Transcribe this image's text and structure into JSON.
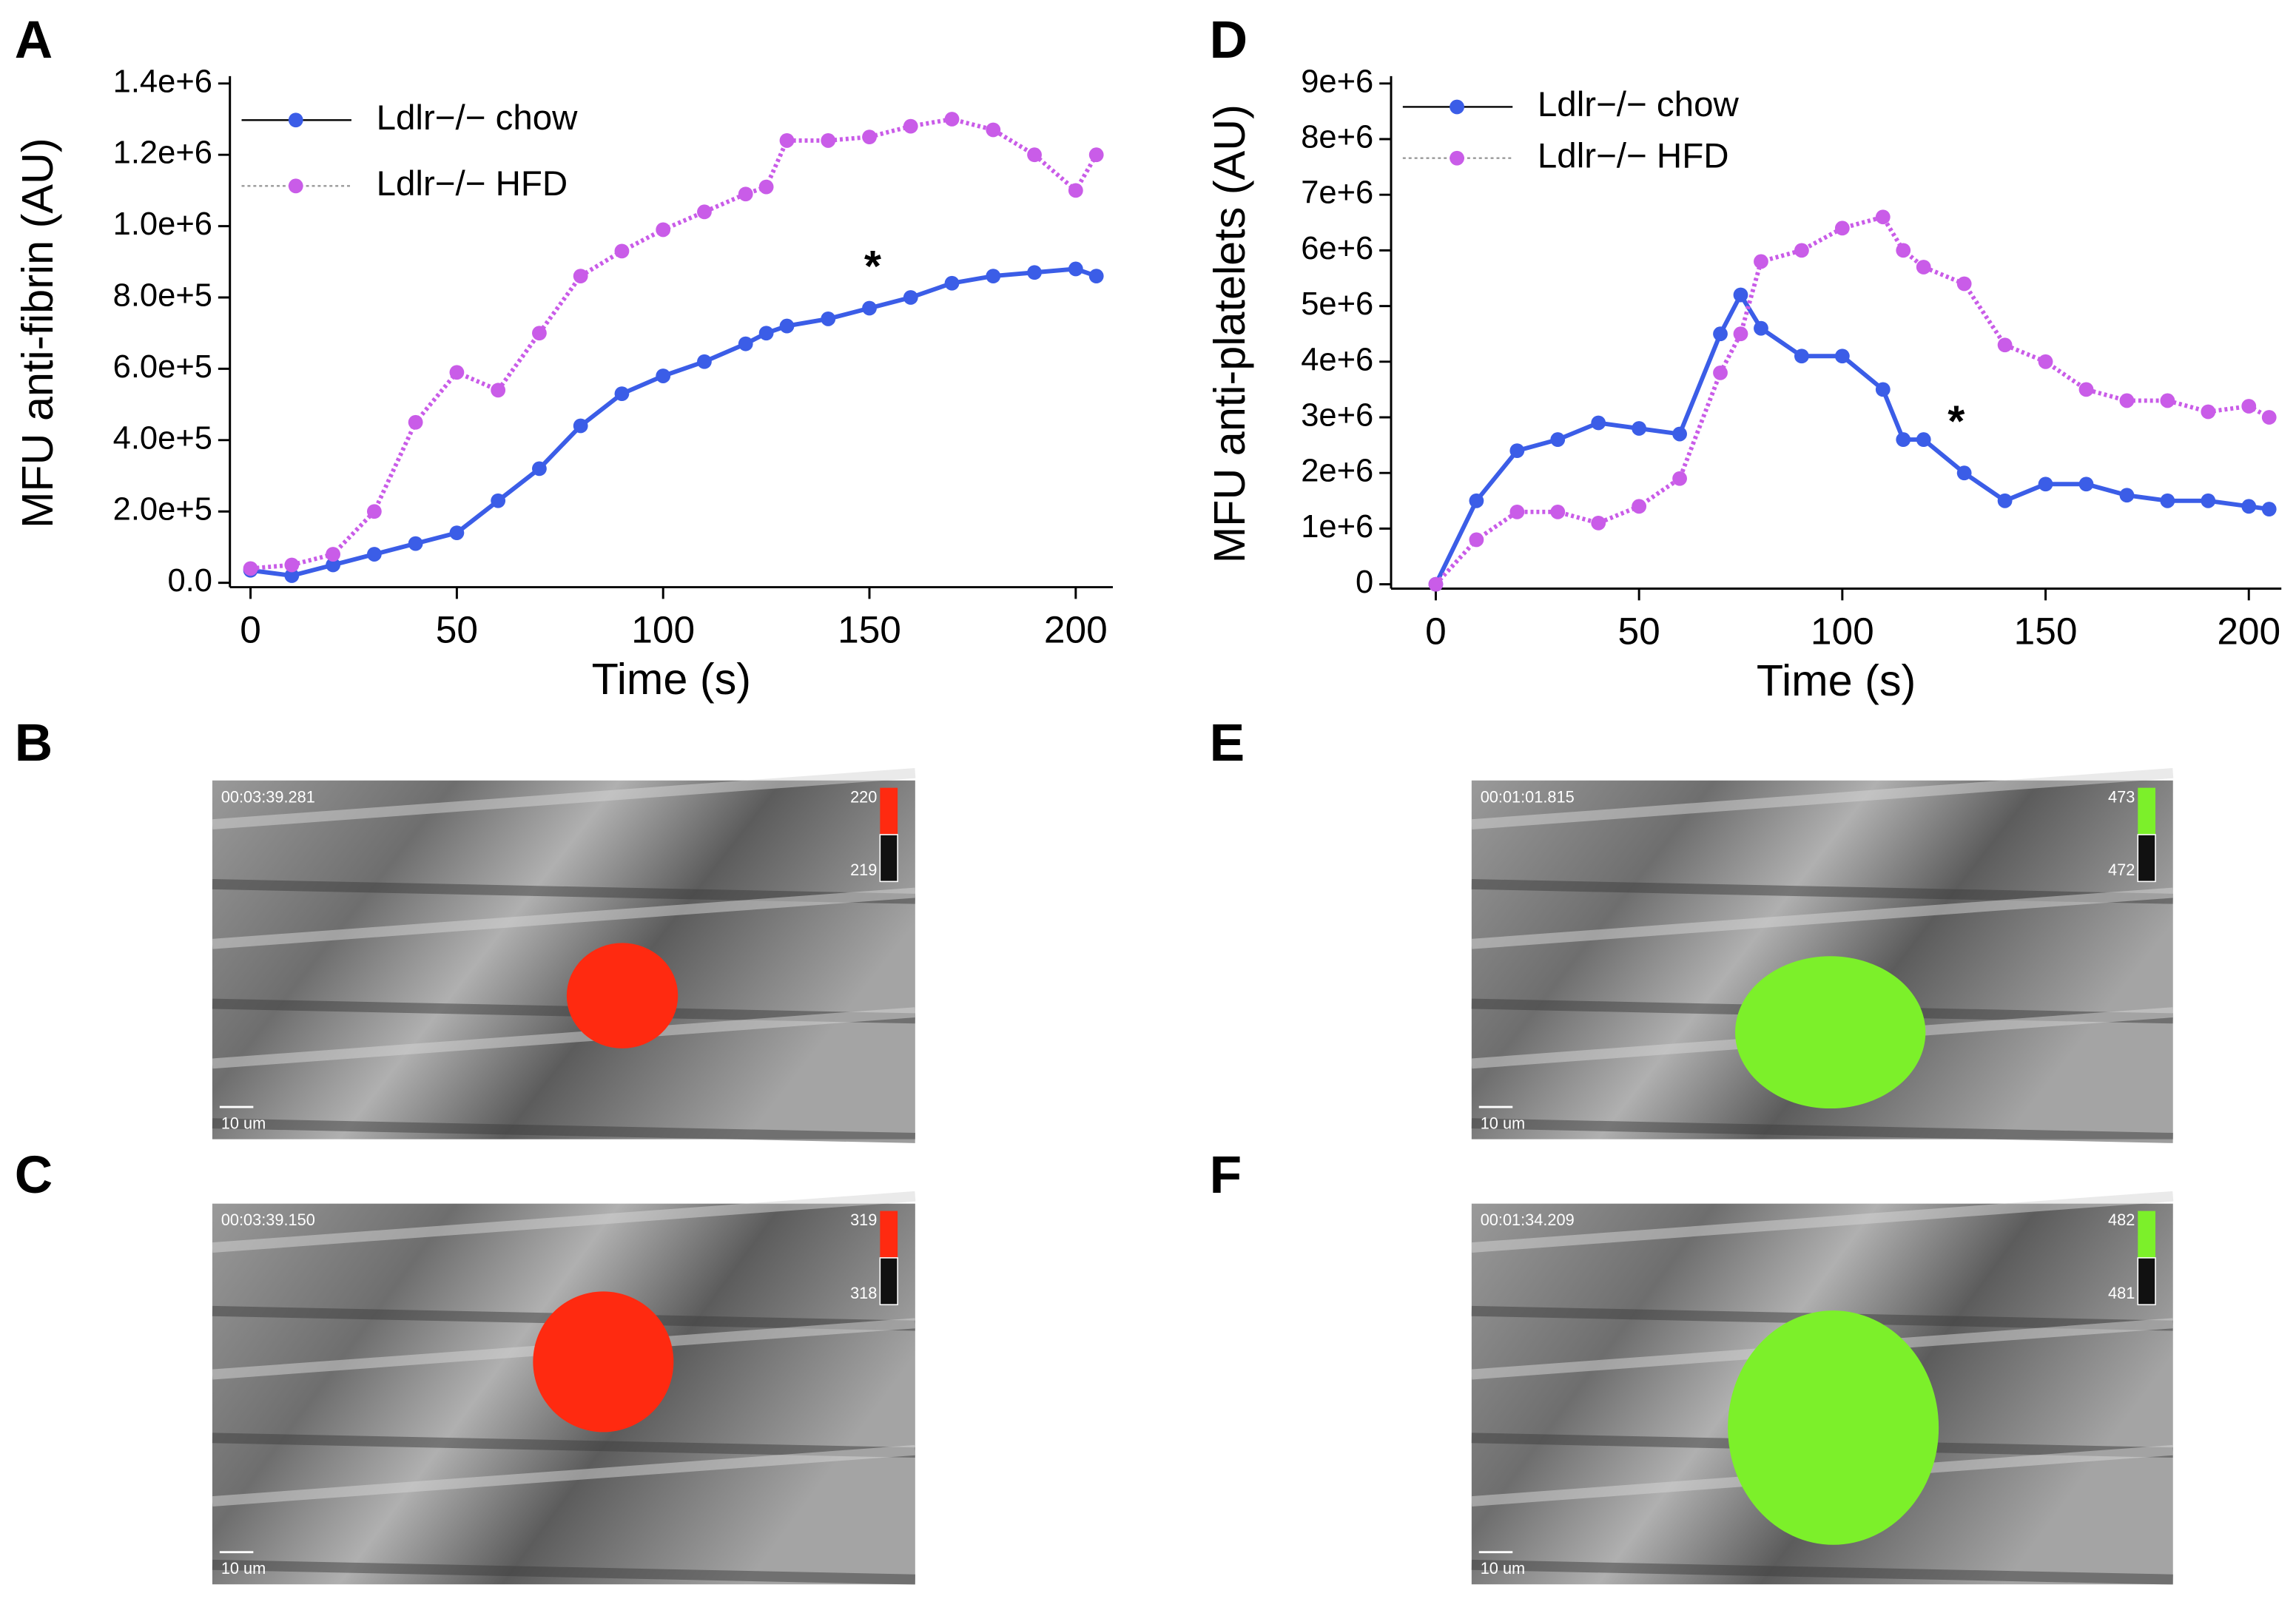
{
  "chart_data": [
    {
      "type": "line",
      "y_label": "MFU anti-fibrin (AU)",
      "x_label": "Time (s)",
      "x": [
        0,
        10,
        20,
        30,
        40,
        50,
        60,
        70,
        80,
        90,
        100,
        110,
        120,
        125,
        130,
        140,
        150,
        160,
        170,
        180,
        190,
        200,
        205
      ],
      "series": [
        {
          "name": "Ldlr−/− chow",
          "color": "#3b5de7",
          "dash": false,
          "values": [
            35000,
            20000,
            50000,
            80000,
            110000,
            140000,
            230000,
            320000,
            440000,
            530000,
            580000,
            620000,
            670000,
            700000,
            720000,
            740000,
            770000,
            800000,
            840000,
            860000,
            870000,
            880000,
            860000
          ]
        },
        {
          "name": "Ldlr−/− HFD",
          "color": "#c95ce8",
          "dash": true,
          "values": [
            40000,
            50000,
            80000,
            200000,
            450000,
            590000,
            540000,
            700000,
            860000,
            930000,
            990000,
            1040000,
            1090000,
            1110000,
            1240000,
            1240000,
            1250000,
            1280000,
            1300000,
            1270000,
            1200000,
            1100000,
            1200000
          ]
        }
      ],
      "xlim": [
        -5,
        209
      ],
      "xticks": [
        0,
        50,
        100,
        150,
        200
      ],
      "ylim": [
        0,
        1400000
      ],
      "yticks": [
        {
          "value": 0,
          "label": "0.0"
        },
        {
          "value": 200000,
          "label": "2.0e+5"
        },
        {
          "value": 400000,
          "label": "4.0e+5"
        },
        {
          "value": 600000,
          "label": "6.0e+5"
        },
        {
          "value": 800000,
          "label": "8.0e+5"
        },
        {
          "value": 1000000,
          "label": "1.0e+6"
        },
        {
          "value": 1200000,
          "label": "1.2e+6"
        },
        {
          "value": 1400000,
          "label": "1.4e+6"
        }
      ],
      "legend": "upper left",
      "grid": false,
      "annotation": "*"
    },
    {
      "type": "line",
      "y_label": "MFU anti-platelets (AU)",
      "x_label": "Time (s)",
      "x": [
        0,
        10,
        20,
        30,
        40,
        50,
        60,
        70,
        75,
        80,
        90,
        100,
        110,
        115,
        120,
        130,
        140,
        150,
        160,
        170,
        180,
        190,
        200,
        205
      ],
      "series": [
        {
          "name": "Ldlr−/− chow",
          "color": "#3b5de7",
          "dash": false,
          "values": [
            0,
            1500000,
            2400000,
            2600000,
            2900000,
            2800000,
            2700000,
            4500000,
            5200000,
            4600000,
            4100000,
            4100000,
            3500000,
            2600000,
            2600000,
            2000000,
            1500000,
            1800000,
            1800000,
            1600000,
            1500000,
            1500000,
            1400000,
            1350000
          ]
        },
        {
          "name": "Ldlr−/− HFD",
          "color": "#c95ce8",
          "dash": true,
          "values": [
            0,
            800000,
            1300000,
            1300000,
            1100000,
            1400000,
            1900000,
            3800000,
            4500000,
            5800000,
            6000000,
            6400000,
            6600000,
            6000000,
            5700000,
            5400000,
            4300000,
            4000000,
            3500000,
            3300000,
            3300000,
            3100000,
            3200000,
            3000000
          ]
        }
      ],
      "xlim": [
        -11,
        208
      ],
      "xticks": [
        0,
        50,
        100,
        150,
        200
      ],
      "ylim": [
        0,
        9000000
      ],
      "yticks": [
        0,
        {
          "value": 1000000,
          "label": "1e+6"
        },
        {
          "value": 2000000,
          "label": "2e+6"
        },
        {
          "value": 3000000,
          "label": "3e+6"
        },
        {
          "value": 4000000,
          "label": "4e+6"
        },
        {
          "value": 5000000,
          "label": "5e+6"
        },
        {
          "value": 6000000,
          "label": "6e+6"
        },
        {
          "value": 7000000,
          "label": "7e+6"
        },
        {
          "value": 8000000,
          "label": "8e+6"
        },
        {
          "value": 9000000,
          "label": "9e+6"
        }
      ],
      "legend": "upper left",
      "grid": false,
      "annotation": "*"
    }
  ],
  "panel_labels": [
    "A",
    "B",
    "C",
    "D",
    "E",
    "F"
  ],
  "images": [
    {
      "timestamp": "00:03:39.281",
      "scale_bar": "10 um",
      "bar_max": "220",
      "bar_min": "219",
      "color": "#ff2a10"
    },
    {
      "timestamp": "00:03:39.150",
      "scale_bar": "10 um",
      "bar_max": "319",
      "bar_min": "318",
      "color": "#ff2a10"
    },
    {
      "timestamp": "00:01:01.815",
      "scale_bar": "10 um",
      "bar_max": "473",
      "bar_min": "472",
      "color": "#7cf02a"
    },
    {
      "timestamp": "00:01:34.209",
      "scale_bar": "10 um",
      "bar_max": "482",
      "bar_min": "481",
      "color": "#7cf02a"
    }
  ]
}
